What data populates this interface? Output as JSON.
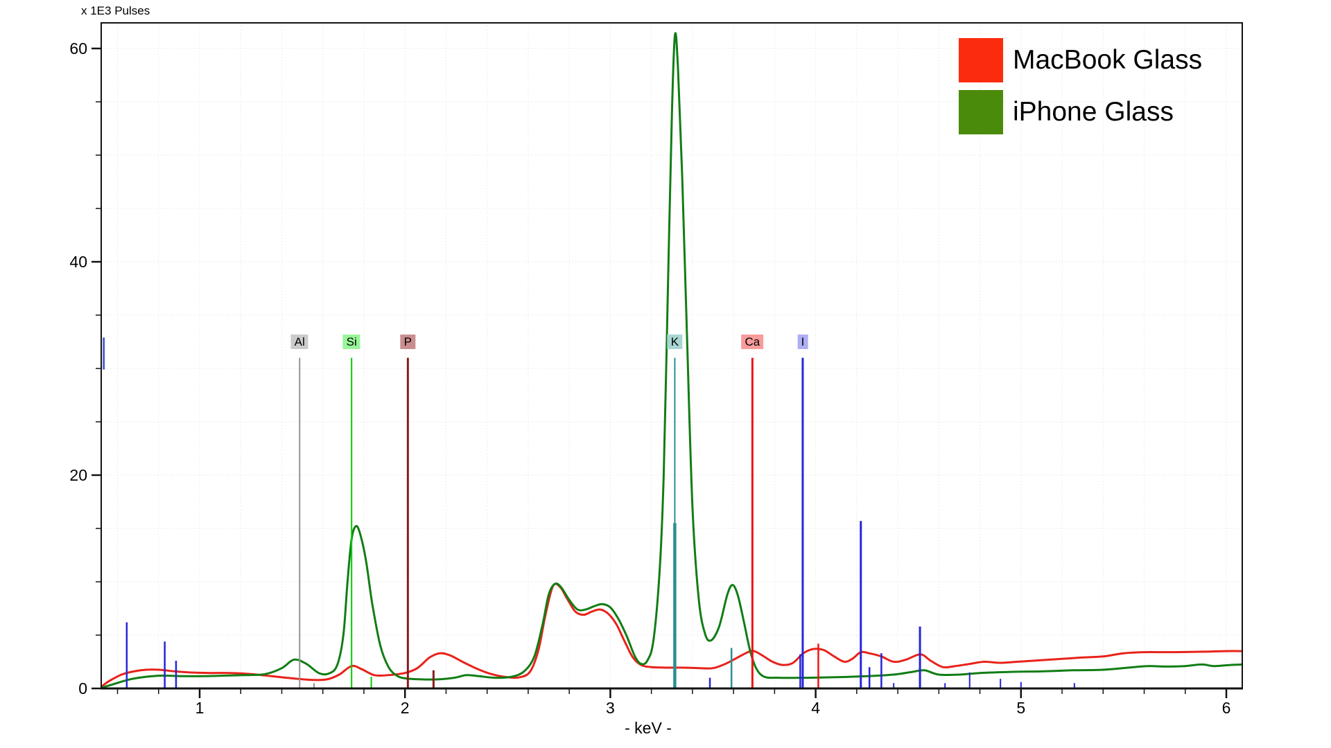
{
  "chart_data": {
    "type": "line",
    "title": "x 1E3 Pulses",
    "xlabel": "- keV -",
    "x_range": [
      0.52,
      6.08
    ],
    "y_range": [
      0,
      62.4
    ],
    "x_ticks_major": [
      1,
      2,
      3,
      4,
      5,
      6
    ],
    "x_minor_step": 0.2,
    "y_ticks_major": [
      0,
      20,
      40,
      60
    ],
    "y_minor_step": 5,
    "grid": {
      "style": "dotted",
      "color": "#e7e7e7",
      "vertical_every_kev": 0.2,
      "horizontal_every": 5
    },
    "legend": {
      "position": "top-right",
      "items": [
        {
          "label": "MacBook Glass",
          "swatch_color": "#fb2c0d"
        },
        {
          "label": "iPhone Glass",
          "swatch_color": "#4b8b0b"
        }
      ]
    },
    "series": [
      {
        "name": "MacBook Glass",
        "color": "#e8221a",
        "points": [
          [
            0.52,
            0.15
          ],
          [
            0.56,
            0.7
          ],
          [
            0.62,
            1.3
          ],
          [
            0.68,
            1.6
          ],
          [
            0.74,
            1.75
          ],
          [
            0.8,
            1.75
          ],
          [
            0.88,
            1.6
          ],
          [
            0.95,
            1.5
          ],
          [
            1.05,
            1.45
          ],
          [
            1.15,
            1.45
          ],
          [
            1.25,
            1.35
          ],
          [
            1.35,
            1.15
          ],
          [
            1.45,
            0.95
          ],
          [
            1.55,
            0.8
          ],
          [
            1.62,
            0.85
          ],
          [
            1.68,
            1.3
          ],
          [
            1.74,
            2.1
          ],
          [
            1.79,
            1.8
          ],
          [
            1.85,
            1.25
          ],
          [
            1.92,
            1.25
          ],
          [
            2.0,
            1.45
          ],
          [
            2.06,
            1.9
          ],
          [
            2.12,
            2.9
          ],
          [
            2.17,
            3.3
          ],
          [
            2.22,
            3.1
          ],
          [
            2.28,
            2.5
          ],
          [
            2.35,
            1.85
          ],
          [
            2.42,
            1.35
          ],
          [
            2.5,
            1.05
          ],
          [
            2.56,
            1.05
          ],
          [
            2.61,
            1.6
          ],
          [
            2.65,
            3.6
          ],
          [
            2.68,
            6.5
          ],
          [
            2.71,
            9.0
          ],
          [
            2.73,
            9.8
          ],
          [
            2.76,
            9.4
          ],
          [
            2.79,
            8.4
          ],
          [
            2.83,
            7.2
          ],
          [
            2.87,
            6.9
          ],
          [
            2.91,
            7.2
          ],
          [
            2.95,
            7.4
          ],
          [
            2.99,
            7.0
          ],
          [
            3.03,
            6.0
          ],
          [
            3.07,
            4.4
          ],
          [
            3.11,
            2.9
          ],
          [
            3.15,
            2.2
          ],
          [
            3.2,
            2.0
          ],
          [
            3.28,
            1.95
          ],
          [
            3.36,
            1.95
          ],
          [
            3.44,
            1.9
          ],
          [
            3.5,
            1.9
          ],
          [
            3.56,
            2.3
          ],
          [
            3.62,
            2.9
          ],
          [
            3.67,
            3.4
          ],
          [
            3.7,
            3.5
          ],
          [
            3.74,
            3.1
          ],
          [
            3.79,
            2.5
          ],
          [
            3.84,
            2.2
          ],
          [
            3.89,
            2.4
          ],
          [
            3.94,
            3.3
          ],
          [
            3.99,
            3.7
          ],
          [
            4.04,
            3.6
          ],
          [
            4.09,
            3.0
          ],
          [
            4.14,
            2.5
          ],
          [
            4.18,
            2.8
          ],
          [
            4.22,
            3.4
          ],
          [
            4.26,
            3.3
          ],
          [
            4.32,
            3.0
          ],
          [
            4.38,
            2.5
          ],
          [
            4.44,
            2.7
          ],
          [
            4.51,
            3.2
          ],
          [
            4.56,
            2.6
          ],
          [
            4.62,
            2.0
          ],
          [
            4.68,
            2.1
          ],
          [
            4.75,
            2.3
          ],
          [
            4.82,
            2.5
          ],
          [
            4.9,
            2.4
          ],
          [
            4.98,
            2.5
          ],
          [
            5.06,
            2.6
          ],
          [
            5.14,
            2.7
          ],
          [
            5.22,
            2.8
          ],
          [
            5.3,
            2.9
          ],
          [
            5.4,
            3.0
          ],
          [
            5.5,
            3.3
          ],
          [
            5.6,
            3.4
          ],
          [
            5.75,
            3.4
          ],
          [
            5.9,
            3.45
          ],
          [
            6.0,
            3.5
          ],
          [
            6.08,
            3.5
          ]
        ]
      },
      {
        "name": "iPhone Glass",
        "color": "#117d14",
        "points": [
          [
            0.52,
            0.05
          ],
          [
            0.58,
            0.4
          ],
          [
            0.66,
            0.85
          ],
          [
            0.74,
            1.1
          ],
          [
            0.82,
            1.2
          ],
          [
            0.92,
            1.15
          ],
          [
            1.02,
            1.15
          ],
          [
            1.12,
            1.2
          ],
          [
            1.22,
            1.25
          ],
          [
            1.32,
            1.35
          ],
          [
            1.4,
            1.9
          ],
          [
            1.46,
            2.7
          ],
          [
            1.52,
            2.3
          ],
          [
            1.58,
            1.45
          ],
          [
            1.63,
            1.4
          ],
          [
            1.67,
            2.2
          ],
          [
            1.7,
            5.0
          ],
          [
            1.72,
            10.0
          ],
          [
            1.74,
            14.0
          ],
          [
            1.76,
            15.2
          ],
          [
            1.78,
            14.6
          ],
          [
            1.81,
            12.0
          ],
          [
            1.84,
            8.0
          ],
          [
            1.88,
            4.0
          ],
          [
            1.92,
            2.0
          ],
          [
            1.96,
            1.2
          ],
          [
            2.0,
            0.95
          ],
          [
            2.08,
            0.85
          ],
          [
            2.16,
            0.85
          ],
          [
            2.24,
            1.0
          ],
          [
            2.3,
            1.25
          ],
          [
            2.36,
            1.15
          ],
          [
            2.44,
            1.0
          ],
          [
            2.52,
            1.1
          ],
          [
            2.58,
            1.6
          ],
          [
            2.63,
            3.0
          ],
          [
            2.67,
            6.0
          ],
          [
            2.7,
            8.8
          ],
          [
            2.73,
            9.8
          ],
          [
            2.76,
            9.5
          ],
          [
            2.8,
            8.3
          ],
          [
            2.84,
            7.4
          ],
          [
            2.88,
            7.4
          ],
          [
            2.92,
            7.7
          ],
          [
            2.96,
            7.9
          ],
          [
            3.0,
            7.6
          ],
          [
            3.04,
            6.5
          ],
          [
            3.08,
            4.9
          ],
          [
            3.12,
            3.0
          ],
          [
            3.15,
            2.3
          ],
          [
            3.18,
            2.6
          ],
          [
            3.21,
            4.5
          ],
          [
            3.24,
            11
          ],
          [
            3.26,
            20
          ],
          [
            3.28,
            37
          ],
          [
            3.3,
            54
          ],
          [
            3.315,
            61.3
          ],
          [
            3.33,
            58
          ],
          [
            3.35,
            48
          ],
          [
            3.375,
            32
          ],
          [
            3.4,
            17
          ],
          [
            3.43,
            8.5
          ],
          [
            3.46,
            5.2
          ],
          [
            3.49,
            4.5
          ],
          [
            3.53,
            5.8
          ],
          [
            3.57,
            8.8
          ],
          [
            3.595,
            9.7
          ],
          [
            3.62,
            8.8
          ],
          [
            3.65,
            6.3
          ],
          [
            3.68,
            3.6
          ],
          [
            3.71,
            1.9
          ],
          [
            3.75,
            1.1
          ],
          [
            3.82,
            1.0
          ],
          [
            3.95,
            1.0
          ],
          [
            4.1,
            1.05
          ],
          [
            4.25,
            1.15
          ],
          [
            4.38,
            1.3
          ],
          [
            4.47,
            1.55
          ],
          [
            4.53,
            1.7
          ],
          [
            4.6,
            1.3
          ],
          [
            4.7,
            1.3
          ],
          [
            4.8,
            1.45
          ],
          [
            4.95,
            1.55
          ],
          [
            5.1,
            1.6
          ],
          [
            5.25,
            1.7
          ],
          [
            5.4,
            1.75
          ],
          [
            5.55,
            2.0
          ],
          [
            5.62,
            2.1
          ],
          [
            5.7,
            2.05
          ],
          [
            5.8,
            2.1
          ],
          [
            5.88,
            2.25
          ],
          [
            5.94,
            2.1
          ],
          [
            6.02,
            2.2
          ],
          [
            6.08,
            2.25
          ]
        ]
      }
    ],
    "element_markers": [
      {
        "element": "Al",
        "label_kev": 1.487,
        "label_bg": "#cbcbcb",
        "line_color": "#949494",
        "lines": [
          {
            "kev": 1.487,
            "height": 31,
            "width": 2
          },
          {
            "kev": 1.557,
            "height": 0.5,
            "width": 2
          }
        ]
      },
      {
        "element": "Si",
        "label_kev": 1.74,
        "label_bg": "#98f598",
        "line_color": "#00cc00",
        "lines": [
          {
            "kev": 1.74,
            "height": 31,
            "width": 2
          },
          {
            "kev": 1.836,
            "height": 1.1,
            "width": 2
          }
        ]
      },
      {
        "element": "P",
        "label_kev": 2.014,
        "label_bg": "#ca8e8e",
        "line_color": "#8c1a1a",
        "lines": [
          {
            "kev": 2.014,
            "height": 31,
            "width": 3
          },
          {
            "kev": 2.139,
            "height": 1.7,
            "width": 3
          }
        ]
      },
      {
        "element": "K",
        "label_kev": 3.314,
        "label_bg": "#a8d6d2",
        "line_color": "#2a8f93",
        "lines": [
          {
            "kev": 3.314,
            "height": 31,
            "width": 2
          },
          {
            "kev": 3.314,
            "height": 15.5,
            "width": 4.5
          },
          {
            "kev": 3.59,
            "height": 3.8,
            "width": 2.5
          }
        ]
      },
      {
        "element": "Ca",
        "label_kev": 3.692,
        "label_bg": "#f89b9b",
        "line_color": "#f01414",
        "lines": [
          {
            "kev": 3.692,
            "height": 31,
            "width": 3
          },
          {
            "kev": 4.013,
            "height": 4.2,
            "width": 2.5
          }
        ]
      },
      {
        "element": "I",
        "label_kev": 3.937,
        "label_bg": "#aeaef5",
        "line_color": "#2525d8",
        "lines": [
          {
            "kev": 0.645,
            "height": 6.2,
            "width": 2.5
          },
          {
            "kev": 0.83,
            "height": 4.4,
            "width": 2.5
          },
          {
            "kev": 0.885,
            "height": 2.6,
            "width": 2.5
          },
          {
            "kev": 3.485,
            "height": 1.0,
            "width": 2.5
          },
          {
            "kev": 3.925,
            "height": 3.2,
            "width": 2.5
          },
          {
            "kev": 3.937,
            "height": 31,
            "width": 3
          },
          {
            "kev": 4.22,
            "height": 15.7,
            "width": 3
          },
          {
            "kev": 4.262,
            "height": 2.0,
            "width": 2.5
          },
          {
            "kev": 4.32,
            "height": 3.3,
            "width": 2.5
          },
          {
            "kev": 4.38,
            "height": 0.5,
            "width": 2
          },
          {
            "kev": 4.508,
            "height": 5.8,
            "width": 3
          },
          {
            "kev": 4.63,
            "height": 0.5,
            "width": 2
          },
          {
            "kev": 4.75,
            "height": 1.5,
            "width": 2
          },
          {
            "kev": 4.9,
            "height": 0.9,
            "width": 2
          },
          {
            "kev": 5.0,
            "height": 0.6,
            "width": 2
          },
          {
            "kev": 5.26,
            "height": 0.5,
            "width": 2
          }
        ]
      }
    ],
    "edge_fragment": {
      "kev": 0.533,
      "v_bottom": 29.9,
      "v_top": 32.9,
      "color": "#4f5fd0",
      "width": 3
    }
  }
}
